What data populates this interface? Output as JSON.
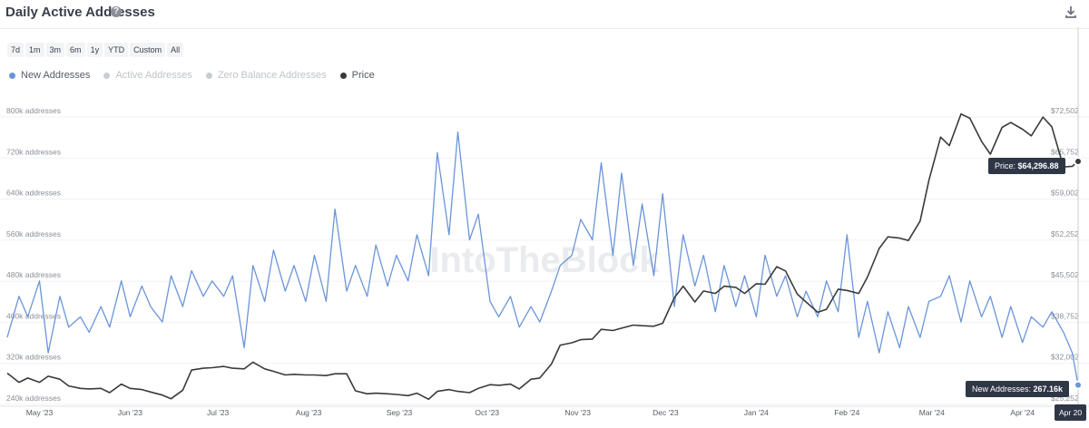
{
  "header": {
    "title": "Daily Active Addresses",
    "help_glyph": "?",
    "download_icon": "download-icon"
  },
  "ranges": [
    "7d",
    "1m",
    "3m",
    "6m",
    "1y",
    "YTD",
    "Custom",
    "All"
  ],
  "legend": [
    {
      "label": "New Addresses",
      "color": "#6a95d8",
      "active": true
    },
    {
      "label": "Active Addresses",
      "color": "#c8ccd2",
      "active": false
    },
    {
      "label": "Zero Balance Addresses",
      "color": "#c8ccd2",
      "active": false
    },
    {
      "label": "Price",
      "color": "#3a3a3a",
      "active": true
    }
  ],
  "watermark": "IntoTheBlock",
  "tooltips": {
    "price_label": "Price: ",
    "price_value": "$64,296.88",
    "new_label": "New Addresses: ",
    "new_value": "267.16k",
    "date": "Apr 20"
  },
  "chart_data": {
    "type": "line",
    "left_axis": {
      "ticks": [
        "800k addresses",
        "720k addresses",
        "640k addresses",
        "560k addresses",
        "480k addresses",
        "400k addresses",
        "320k addresses",
        "240k addresses"
      ],
      "range": [
        240000,
        800000
      ]
    },
    "right_axis": {
      "ticks": [
        "$72,502",
        "$65,752",
        "$59,002",
        "$52,252",
        "$45,502",
        "$38,752",
        "$32,002",
        "$25,252"
      ],
      "range": [
        25252,
        72502
      ]
    },
    "x_axis": {
      "ticks": [
        "May '23",
        "Jun '23",
        "Jul '23",
        "Aug '23",
        "Sep '23",
        "Oct '23",
        "Nov '23",
        "Dec '23",
        "Jan '24",
        "Feb '24",
        "Mar '24",
        "Apr '24"
      ],
      "start_date": "2023-04-20",
      "end_date": "2024-04-20"
    },
    "grid": true,
    "series": [
      {
        "name": "New Addresses",
        "axis": "left",
        "color": "#6a95d8",
        "points": [
          [
            "2023-04-20",
            360000
          ],
          [
            "2023-04-24",
            440000
          ],
          [
            "2023-04-27",
            400000
          ],
          [
            "2023-05-01",
            470000
          ],
          [
            "2023-05-04",
            330000
          ],
          [
            "2023-05-08",
            440000
          ],
          [
            "2023-05-11",
            380000
          ],
          [
            "2023-05-15",
            400000
          ],
          [
            "2023-05-18",
            370000
          ],
          [
            "2023-05-22",
            420000
          ],
          [
            "2023-05-25",
            380000
          ],
          [
            "2023-05-29",
            470000
          ],
          [
            "2023-06-01",
            400000
          ],
          [
            "2023-06-05",
            460000
          ],
          [
            "2023-06-08",
            420000
          ],
          [
            "2023-06-12",
            390000
          ],
          [
            "2023-06-15",
            480000
          ],
          [
            "2023-06-19",
            420000
          ],
          [
            "2023-06-22",
            490000
          ],
          [
            "2023-06-26",
            440000
          ],
          [
            "2023-06-29",
            470000
          ],
          [
            "2023-07-03",
            440000
          ],
          [
            "2023-07-06",
            480000
          ],
          [
            "2023-07-10",
            340000
          ],
          [
            "2023-07-13",
            500000
          ],
          [
            "2023-07-17",
            430000
          ],
          [
            "2023-07-20",
            530000
          ],
          [
            "2023-07-24",
            450000
          ],
          [
            "2023-07-27",
            500000
          ],
          [
            "2023-07-31",
            430000
          ],
          [
            "2023-08-03",
            520000
          ],
          [
            "2023-08-07",
            430000
          ],
          [
            "2023-08-10",
            610000
          ],
          [
            "2023-08-14",
            450000
          ],
          [
            "2023-08-17",
            500000
          ],
          [
            "2023-08-21",
            440000
          ],
          [
            "2023-08-24",
            540000
          ],
          [
            "2023-08-28",
            460000
          ],
          [
            "2023-08-31",
            520000
          ],
          [
            "2023-09-04",
            470000
          ],
          [
            "2023-09-07",
            560000
          ],
          [
            "2023-09-11",
            480000
          ],
          [
            "2023-09-14",
            720000
          ],
          [
            "2023-09-18",
            560000
          ],
          [
            "2023-09-21",
            760000
          ],
          [
            "2023-09-25",
            550000
          ],
          [
            "2023-09-28",
            600000
          ],
          [
            "2023-10-02",
            430000
          ],
          [
            "2023-10-05",
            400000
          ],
          [
            "2023-10-09",
            440000
          ],
          [
            "2023-10-12",
            380000
          ],
          [
            "2023-10-16",
            420000
          ],
          [
            "2023-10-19",
            390000
          ],
          [
            "2023-10-23",
            450000
          ],
          [
            "2023-10-26",
            500000
          ],
          [
            "2023-10-30",
            520000
          ],
          [
            "2023-11-02",
            590000
          ],
          [
            "2023-11-06",
            550000
          ],
          [
            "2023-11-09",
            700000
          ],
          [
            "2023-11-13",
            520000
          ],
          [
            "2023-11-16",
            680000
          ],
          [
            "2023-11-20",
            500000
          ],
          [
            "2023-11-23",
            620000
          ],
          [
            "2023-11-27",
            480000
          ],
          [
            "2023-11-30",
            640000
          ],
          [
            "2023-12-04",
            420000
          ],
          [
            "2023-12-07",
            560000
          ],
          [
            "2023-12-11",
            460000
          ],
          [
            "2023-12-14",
            520000
          ],
          [
            "2023-12-18",
            410000
          ],
          [
            "2023-12-21",
            500000
          ],
          [
            "2023-12-25",
            420000
          ],
          [
            "2023-12-28",
            480000
          ],
          [
            "2024-01-01",
            400000
          ],
          [
            "2024-01-04",
            520000
          ],
          [
            "2024-01-08",
            440000
          ],
          [
            "2024-01-11",
            480000
          ],
          [
            "2024-01-15",
            400000
          ],
          [
            "2024-01-18",
            450000
          ],
          [
            "2024-01-22",
            400000
          ],
          [
            "2024-01-25",
            470000
          ],
          [
            "2024-01-29",
            410000
          ],
          [
            "2024-02-01",
            560000
          ],
          [
            "2024-02-05",
            360000
          ],
          [
            "2024-02-08",
            430000
          ],
          [
            "2024-02-12",
            330000
          ],
          [
            "2024-02-15",
            410000
          ],
          [
            "2024-02-19",
            340000
          ],
          [
            "2024-02-22",
            420000
          ],
          [
            "2024-02-26",
            360000
          ],
          [
            "2024-02-29",
            430000
          ],
          [
            "2024-03-04",
            440000
          ],
          [
            "2024-03-07",
            480000
          ],
          [
            "2024-03-11",
            390000
          ],
          [
            "2024-03-14",
            470000
          ],
          [
            "2024-03-18",
            400000
          ],
          [
            "2024-03-21",
            440000
          ],
          [
            "2024-03-25",
            360000
          ],
          [
            "2024-03-28",
            420000
          ],
          [
            "2024-04-01",
            350000
          ],
          [
            "2024-04-04",
            400000
          ],
          [
            "2024-04-08",
            380000
          ],
          [
            "2024-04-11",
            410000
          ],
          [
            "2024-04-15",
            370000
          ],
          [
            "2024-04-18",
            330000
          ],
          [
            "2024-04-20",
            267160
          ]
        ]
      },
      {
        "name": "Price",
        "axis": "right",
        "color": "#3a3a3a",
        "points": [
          [
            "2023-04-20",
            29500
          ],
          [
            "2023-04-24",
            28000
          ],
          [
            "2023-04-27",
            28700
          ],
          [
            "2023-05-01",
            28000
          ],
          [
            "2023-05-04",
            29000
          ],
          [
            "2023-05-08",
            28500
          ],
          [
            "2023-05-11",
            27400
          ],
          [
            "2023-05-15",
            27000
          ],
          [
            "2023-05-18",
            26900
          ],
          [
            "2023-05-22",
            27000
          ],
          [
            "2023-05-25",
            26300
          ],
          [
            "2023-05-29",
            27700
          ],
          [
            "2023-06-01",
            27000
          ],
          [
            "2023-06-05",
            26800
          ],
          [
            "2023-06-08",
            26400
          ],
          [
            "2023-06-12",
            25900
          ],
          [
            "2023-06-15",
            25300
          ],
          [
            "2023-06-19",
            26700
          ],
          [
            "2023-06-22",
            30000
          ],
          [
            "2023-06-26",
            30300
          ],
          [
            "2023-06-29",
            30400
          ],
          [
            "2023-07-03",
            30600
          ],
          [
            "2023-07-06",
            30300
          ],
          [
            "2023-07-10",
            30200
          ],
          [
            "2023-07-13",
            31300
          ],
          [
            "2023-07-17",
            30200
          ],
          [
            "2023-07-20",
            29800
          ],
          [
            "2023-07-24",
            29200
          ],
          [
            "2023-07-27",
            29300
          ],
          [
            "2023-07-31",
            29200
          ],
          [
            "2023-08-03",
            29200
          ],
          [
            "2023-08-07",
            29100
          ],
          [
            "2023-08-10",
            29400
          ],
          [
            "2023-08-14",
            29400
          ],
          [
            "2023-08-17",
            26600
          ],
          [
            "2023-08-21",
            26100
          ],
          [
            "2023-08-24",
            26200
          ],
          [
            "2023-08-28",
            26100
          ],
          [
            "2023-08-31",
            26000
          ],
          [
            "2023-09-04",
            25800
          ],
          [
            "2023-09-07",
            26200
          ],
          [
            "2023-09-11",
            25200
          ],
          [
            "2023-09-14",
            26500
          ],
          [
            "2023-09-18",
            26800
          ],
          [
            "2023-09-21",
            26500
          ],
          [
            "2023-09-25",
            26300
          ],
          [
            "2023-09-28",
            27000
          ],
          [
            "2023-10-02",
            27600
          ],
          [
            "2023-10-05",
            27500
          ],
          [
            "2023-10-09",
            27700
          ],
          [
            "2023-10-12",
            26900
          ],
          [
            "2023-10-16",
            28500
          ],
          [
            "2023-10-19",
            28700
          ],
          [
            "2023-10-23",
            31000
          ],
          [
            "2023-10-26",
            34100
          ],
          [
            "2023-10-30",
            34500
          ],
          [
            "2023-11-02",
            35000
          ],
          [
            "2023-11-06",
            35100
          ],
          [
            "2023-11-09",
            36700
          ],
          [
            "2023-11-13",
            36500
          ],
          [
            "2023-11-16",
            36900
          ],
          [
            "2023-11-20",
            37400
          ],
          [
            "2023-11-23",
            37300
          ],
          [
            "2023-11-27",
            37200
          ],
          [
            "2023-11-30",
            37700
          ],
          [
            "2023-12-04",
            41900
          ],
          [
            "2023-12-07",
            43800
          ],
          [
            "2023-12-11",
            41200
          ],
          [
            "2023-12-14",
            43000
          ],
          [
            "2023-12-18",
            42600
          ],
          [
            "2023-12-21",
            43800
          ],
          [
            "2023-12-25",
            43600
          ],
          [
            "2023-12-28",
            42600
          ],
          [
            "2024-01-01",
            44200
          ],
          [
            "2024-01-04",
            44100
          ],
          [
            "2024-01-08",
            47000
          ],
          [
            "2024-01-11",
            46300
          ],
          [
            "2024-01-15",
            42500
          ],
          [
            "2024-01-18",
            41200
          ],
          [
            "2024-01-22",
            39500
          ],
          [
            "2024-01-25",
            40000
          ],
          [
            "2024-01-29",
            43300
          ],
          [
            "2024-02-01",
            43100
          ],
          [
            "2024-02-05",
            42600
          ],
          [
            "2024-02-08",
            45300
          ],
          [
            "2024-02-12",
            50000
          ],
          [
            "2024-02-15",
            51900
          ],
          [
            "2024-02-19",
            51700
          ],
          [
            "2024-02-22",
            51300
          ],
          [
            "2024-02-26",
            54500
          ],
          [
            "2024-02-29",
            61200
          ],
          [
            "2024-03-04",
            68300
          ],
          [
            "2024-03-07",
            66900
          ],
          [
            "2024-03-11",
            72100
          ],
          [
            "2024-03-14",
            71400
          ],
          [
            "2024-03-18",
            67600
          ],
          [
            "2024-03-21",
            65500
          ],
          [
            "2024-03-25",
            69900
          ],
          [
            "2024-03-28",
            70700
          ],
          [
            "2024-04-01",
            69600
          ],
          [
            "2024-04-04",
            68500
          ],
          [
            "2024-04-08",
            71600
          ],
          [
            "2024-04-11",
            70000
          ],
          [
            "2024-04-15",
            63400
          ],
          [
            "2024-04-18",
            63500
          ],
          [
            "2024-04-20",
            64296.88
          ]
        ]
      }
    ]
  }
}
